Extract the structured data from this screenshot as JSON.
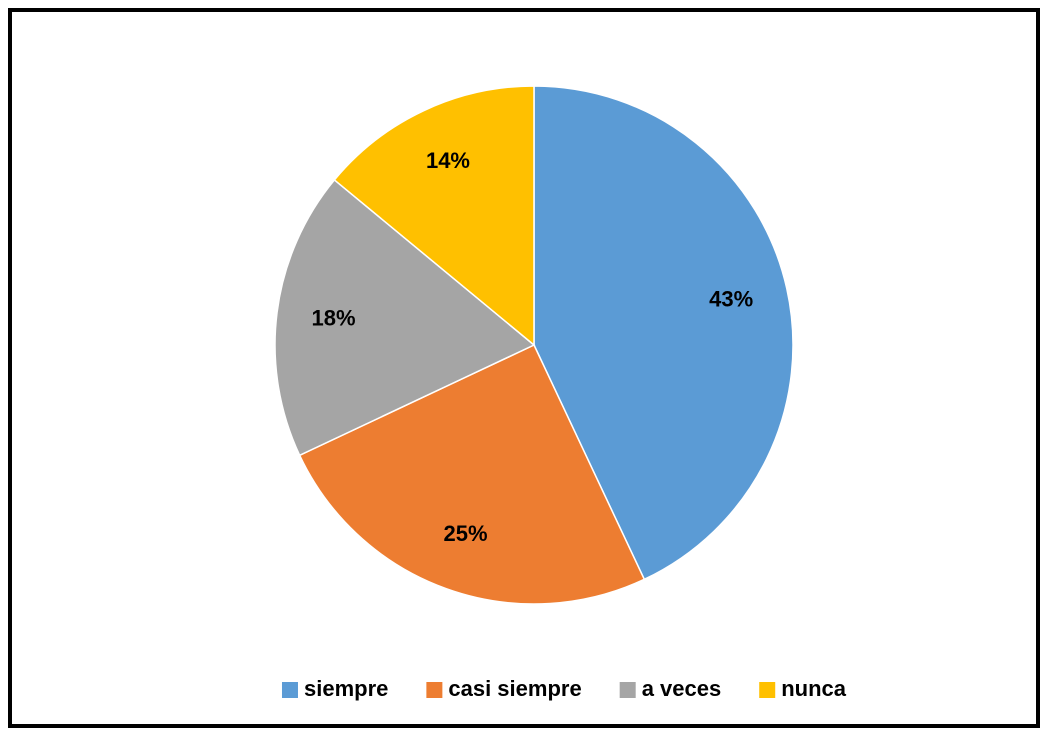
{
  "chart_data": {
    "type": "pie",
    "categories": [
      "siempre",
      "casi siempre",
      "a veces",
      "nunca"
    ],
    "values": [
      43,
      25,
      18,
      14
    ],
    "value_labels": [
      "43%",
      "25%",
      "18%",
      "14%"
    ],
    "colors": [
      "#5b9bd5",
      "#ed7d31",
      "#a5a5a5",
      "#ffc000"
    ],
    "legend": "bottom"
  }
}
